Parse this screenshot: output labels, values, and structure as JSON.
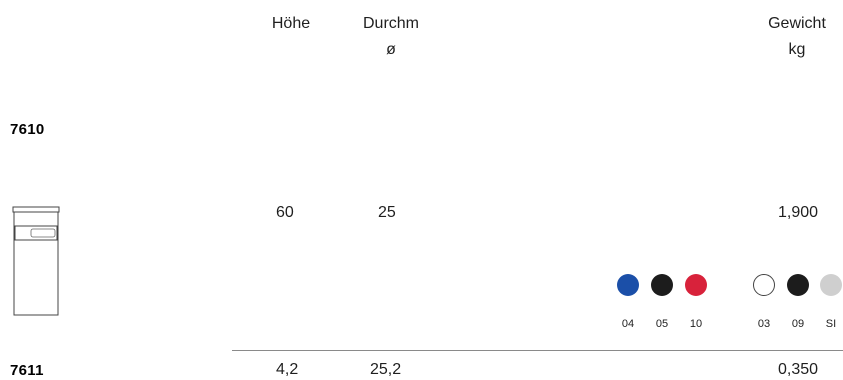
{
  "header": {
    "hoehe": "Höhe",
    "durchm_line1": "Durchm",
    "durchm_line2": "ø",
    "gewicht_line1": "Gewicht",
    "gewicht_line2": "kg"
  },
  "products": [
    {
      "code": "7610",
      "hoehe": "60",
      "durchm": "25",
      "gewicht": "1,900"
    },
    {
      "code": "7611",
      "hoehe": "4,2",
      "durchm": "25,2",
      "gewicht": "0,350"
    }
  ],
  "colors": {
    "group1": [
      {
        "code": "04",
        "hex": "#1b4fa8"
      },
      {
        "code": "05",
        "hex": "#1c1c1c"
      },
      {
        "code": "10",
        "hex": "#d8223b"
      }
    ],
    "group2": [
      {
        "code": "03",
        "hex": "#ffffff"
      },
      {
        "code": "09",
        "hex": "#1c1c1c"
      },
      {
        "code": "SI",
        "hex": "#cfcfcf"
      }
    ]
  },
  "icon": "waste-bin-icon"
}
